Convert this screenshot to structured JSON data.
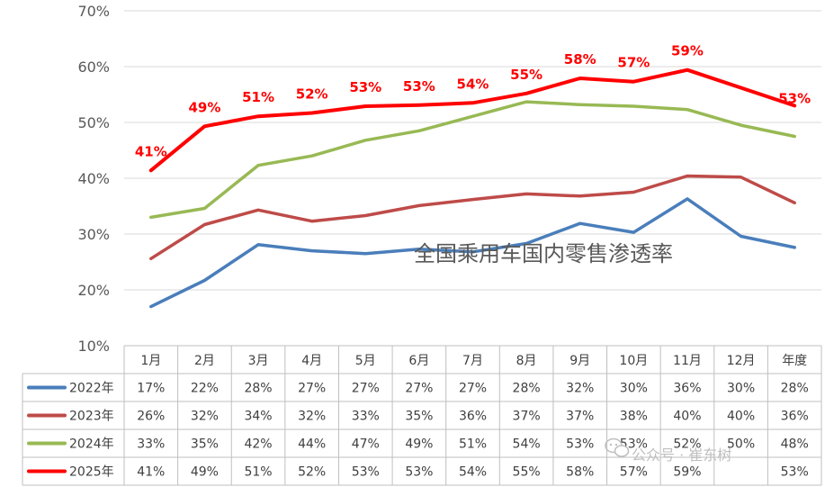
{
  "chart_data": {
    "type": "line",
    "title": "全国乘用车国内零售渗透率",
    "categories": [
      "1月",
      "2月",
      "3月",
      "4月",
      "5月",
      "6月",
      "7月",
      "8月",
      "9月",
      "10月",
      "11月",
      "12月",
      "年度"
    ],
    "y_ticks": [
      "10%",
      "20%",
      "30%",
      "40%",
      "50%",
      "60%",
      "70%"
    ],
    "ylim": [
      10,
      70
    ],
    "grid": true,
    "legend_placement": "data-table-left",
    "series": [
      {
        "name": "2022年",
        "color": "#4a7ebb",
        "values": [
          17,
          21.7,
          28.1,
          27,
          26.5,
          27.3,
          26.8,
          28.3,
          31.9,
          30.3,
          36.3,
          29.6,
          27.6
        ],
        "labels": [
          "17%",
          "22%",
          "28%",
          "27%",
          "27%",
          "27%",
          "27%",
          "28%",
          "32%",
          "30%",
          "36%",
          "30%",
          "28%"
        ]
      },
      {
        "name": "2023年",
        "color": "#be4b48",
        "values": [
          25.6,
          31.7,
          34.3,
          32.3,
          33.3,
          35.1,
          36.2,
          37.2,
          36.8,
          37.5,
          40.4,
          40.2,
          35.6
        ],
        "labels": [
          "26%",
          "32%",
          "34%",
          "32%",
          "33%",
          "35%",
          "36%",
          "37%",
          "37%",
          "38%",
          "40%",
          "40%",
          "36%"
        ]
      },
      {
        "name": "2024年",
        "color": "#98b954",
        "values": [
          33,
          34.6,
          42.3,
          44,
          46.8,
          48.5,
          51.1,
          53.7,
          53.2,
          52.9,
          52.3,
          49.5,
          47.5
        ],
        "labels": [
          "33%",
          "35%",
          "42%",
          "44%",
          "47%",
          "49%",
          "51%",
          "54%",
          "53%",
          "53%",
          "52%",
          "50%",
          "48%"
        ]
      },
      {
        "name": "2025年",
        "color": "#ff0000",
        "values": [
          41.4,
          49.3,
          51.1,
          51.7,
          52.9,
          53.1,
          53.5,
          55.2,
          57.9,
          57.3,
          59.4,
          null,
          53
        ],
        "labels": [
          "41%",
          "49%",
          "51%",
          "52%",
          "53%",
          "53%",
          "54%",
          "55%",
          "58%",
          "57%",
          "59%",
          "",
          "53%"
        ]
      }
    ],
    "annotations": {
      "data_labels_series": "2025年",
      "data_labels": [
        "41%",
        "49%",
        "51%",
        "52%",
        "53%",
        "53%",
        "54%",
        "55%",
        "58%",
        "57%",
        "59%",
        "",
        "53%"
      ]
    }
  },
  "watermark": "公众号 · 崔东树",
  "watermark_icon": "wechat-icon"
}
